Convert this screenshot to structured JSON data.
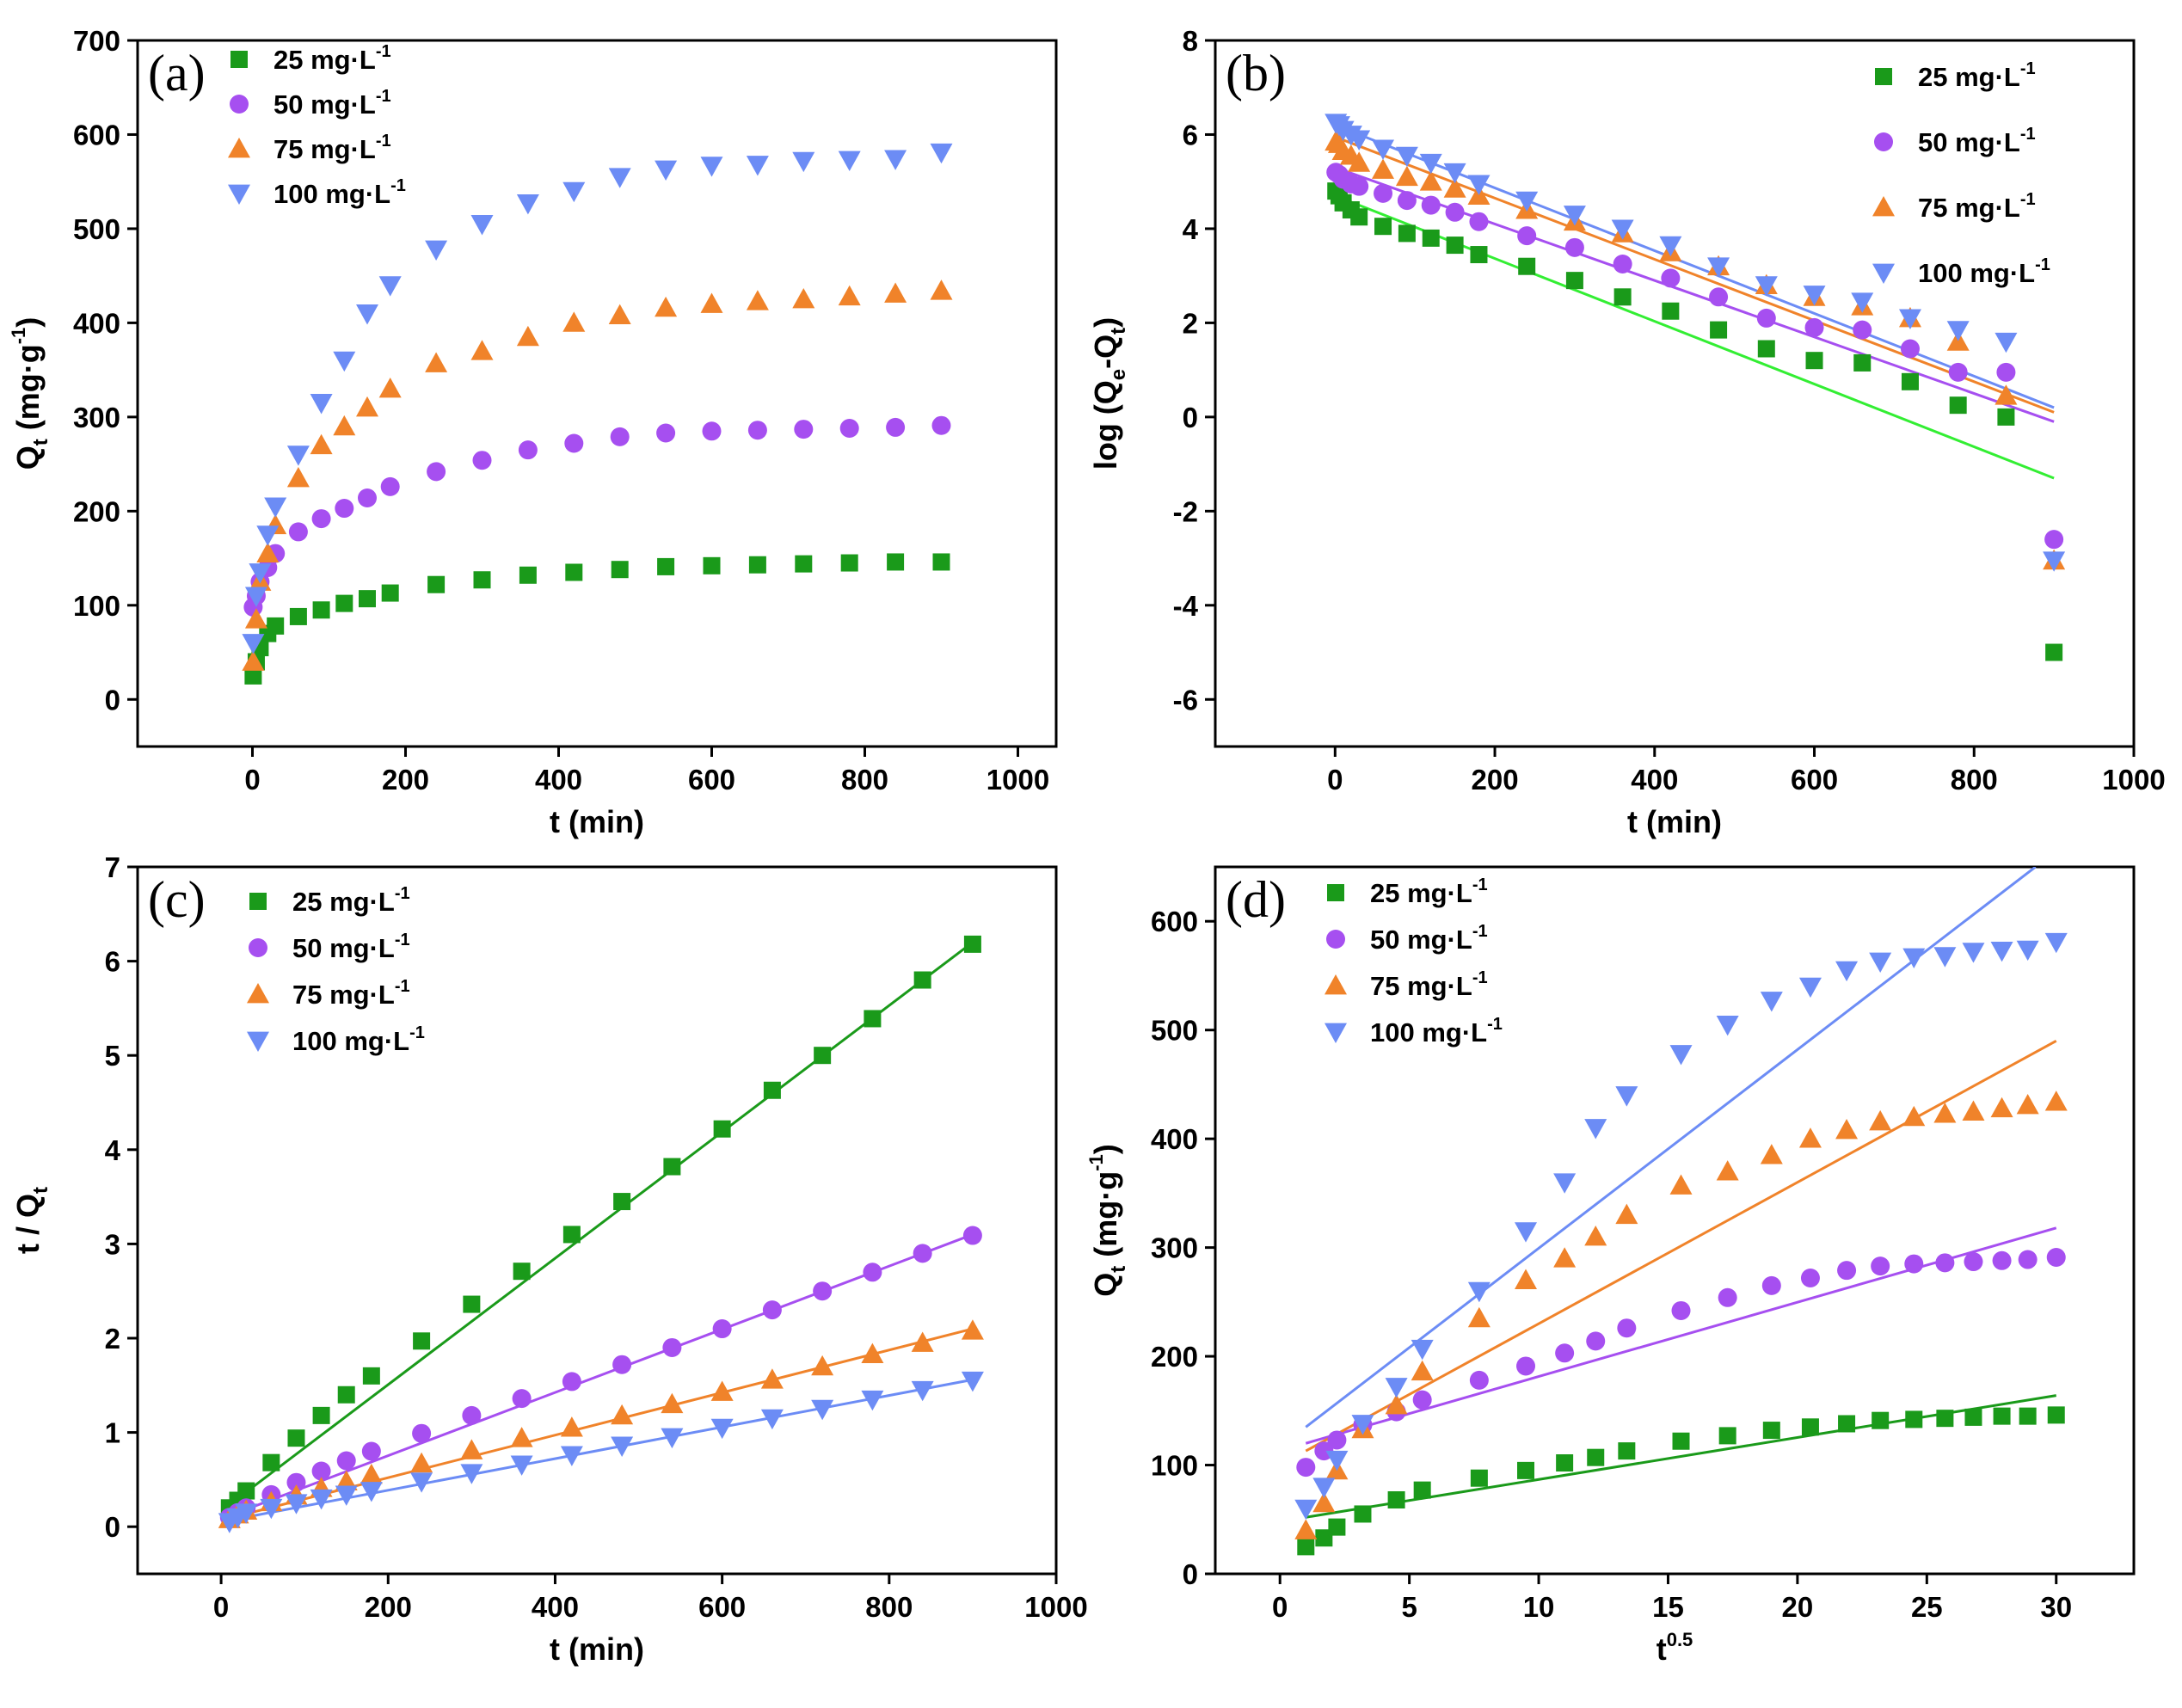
{
  "colors": {
    "c25": "#1a9a1a",
    "c50": "#a64ff0",
    "c75": "#f0832a",
    "c100": "#6c8cf5",
    "fitLightGreen": "#33ee33"
  },
  "legend_unit": "mg·L",
  "legend_exp": "-1",
  "chart_data": [
    {
      "id": "a",
      "type": "scatter",
      "panel_label": "(a)",
      "xlabel": "t (min)",
      "ylabel_main": "Q",
      "ylabel_sub": "t",
      "ylabel_units": " (mg·g",
      "ylabel_exp": "-1",
      "ylabel_close": ")",
      "xlim": [
        -150,
        1050
      ],
      "ylim": [
        -50,
        700
      ],
      "xticks": [
        0,
        200,
        400,
        600,
        800,
        1000
      ],
      "yticks": [
        0,
        100,
        200,
        300,
        400,
        500,
        600,
        700
      ],
      "legend_position": "top-left",
      "series": [
        {
          "name": "25",
          "marker": "square",
          "colorKey": "c25",
          "x": [
            1,
            5,
            10,
            20,
            30,
            60,
            90,
            120,
            150,
            180,
            240,
            300,
            360,
            420,
            480,
            540,
            600,
            660,
            720,
            780,
            840,
            900
          ],
          "y": [
            25,
            40,
            55,
            70,
            78,
            88,
            95,
            102,
            107,
            113,
            122,
            127,
            132,
            135,
            138,
            141,
            142,
            143,
            144,
            145,
            146,
            146
          ]
        },
        {
          "name": "50",
          "marker": "circle",
          "colorKey": "c50",
          "x": [
            1,
            5,
            10,
            20,
            30,
            60,
            90,
            120,
            150,
            180,
            240,
            300,
            360,
            420,
            480,
            540,
            600,
            660,
            720,
            780,
            840,
            900
          ],
          "y": [
            98,
            110,
            125,
            140,
            155,
            178,
            192,
            203,
            214,
            226,
            242,
            254,
            265,
            272,
            279,
            283,
            285,
            286,
            287,
            288,
            289,
            291
          ]
        },
        {
          "name": "75",
          "marker": "triangle-up",
          "colorKey": "c75",
          "x": [
            1,
            5,
            10,
            20,
            30,
            60,
            90,
            120,
            150,
            180,
            240,
            300,
            360,
            420,
            480,
            540,
            600,
            660,
            720,
            780,
            840,
            900
          ],
          "y": [
            40,
            85,
            125,
            155,
            185,
            235,
            270,
            290,
            310,
            330,
            357,
            370,
            385,
            400,
            408,
            416,
            420,
            423,
            425,
            428,
            431,
            434
          ]
        },
        {
          "name": "100",
          "marker": "triangle-down",
          "colorKey": "c100",
          "x": [
            1,
            5,
            10,
            20,
            30,
            60,
            90,
            120,
            150,
            180,
            240,
            300,
            360,
            420,
            480,
            540,
            600,
            660,
            720,
            780,
            840,
            900
          ],
          "y": [
            60,
            110,
            135,
            175,
            205,
            260,
            315,
            360,
            410,
            440,
            478,
            505,
            527,
            540,
            555,
            563,
            567,
            568,
            572,
            573,
            574,
            581
          ]
        }
      ]
    },
    {
      "id": "b",
      "type": "scatter",
      "panel_label": "(b)",
      "xlabel": "t (min)",
      "ylabel_text": "log (Q",
      "ylabel_sub1": "e",
      "ylabel_mid": "-Q",
      "ylabel_sub2": "t",
      "ylabel_close": ")",
      "xlim": [
        -150,
        1000
      ],
      "ylim": [
        -7,
        8
      ],
      "xticks": [
        0,
        200,
        400,
        600,
        800,
        1000
      ],
      "yticks": [
        -6,
        -4,
        -2,
        0,
        2,
        4,
        6,
        8
      ],
      "legend_position": "top-right",
      "series": [
        {
          "name": "25",
          "marker": "square",
          "colorKey": "c25",
          "x": [
            1,
            5,
            10,
            20,
            30,
            60,
            90,
            120,
            150,
            180,
            240,
            300,
            360,
            420,
            480,
            540,
            600,
            660,
            720,
            780,
            840,
            900
          ],
          "y": [
            4.8,
            4.7,
            4.55,
            4.4,
            4.25,
            4.05,
            3.9,
            3.8,
            3.65,
            3.45,
            3.2,
            2.9,
            2.55,
            2.25,
            1.85,
            1.45,
            1.2,
            1.15,
            0.75,
            0.25,
            0.0,
            -5.0
          ],
          "fit": {
            "x": [
              0,
              900
            ],
            "y": [
              4.7,
              -1.3
            ],
            "colorKey": "fitLightGreen"
          }
        },
        {
          "name": "50",
          "marker": "circle",
          "colorKey": "c50",
          "x": [
            1,
            5,
            10,
            20,
            30,
            60,
            90,
            120,
            150,
            180,
            240,
            300,
            360,
            420,
            480,
            540,
            600,
            660,
            720,
            780,
            840,
            900
          ],
          "y": [
            5.2,
            5.15,
            5.05,
            4.95,
            4.9,
            4.75,
            4.6,
            4.5,
            4.35,
            4.15,
            3.85,
            3.6,
            3.25,
            2.95,
            2.55,
            2.1,
            1.9,
            1.85,
            1.45,
            0.95,
            0.95,
            -2.6
          ],
          "fit": {
            "x": [
              0,
              900
            ],
            "y": [
              5.3,
              -0.1
            ],
            "colorKey": "c50"
          }
        },
        {
          "name": "75",
          "marker": "triangle-up",
          "colorKey": "c75",
          "x": [
            1,
            5,
            10,
            20,
            30,
            60,
            90,
            120,
            150,
            180,
            240,
            300,
            360,
            420,
            480,
            540,
            600,
            660,
            720,
            780,
            840,
            900
          ],
          "y": [
            5.85,
            5.8,
            5.65,
            5.55,
            5.4,
            5.25,
            5.1,
            5.0,
            4.85,
            4.7,
            4.4,
            4.15,
            3.9,
            3.5,
            3.2,
            2.8,
            2.55,
            2.35,
            2.1,
            1.6,
            0.45,
            -3.05
          ],
          "fit": {
            "x": [
              0,
              900
            ],
            "y": [
              5.95,
              0.1
            ],
            "colorKey": "c75"
          }
        },
        {
          "name": "100",
          "marker": "triangle-down",
          "colorKey": "c100",
          "x": [
            1,
            5,
            10,
            20,
            30,
            60,
            90,
            120,
            150,
            180,
            240,
            300,
            360,
            420,
            480,
            540,
            600,
            660,
            720,
            780,
            840,
            900
          ],
          "y": [
            6.25,
            6.2,
            6.1,
            6.0,
            5.9,
            5.7,
            5.55,
            5.4,
            5.2,
            4.95,
            4.6,
            4.3,
            4.0,
            3.65,
            3.2,
            2.8,
            2.6,
            2.45,
            2.1,
            1.85,
            1.6,
            -3.05
          ],
          "fit": {
            "x": [
              0,
              900
            ],
            "y": [
              6.2,
              0.2
            ],
            "colorKey": "c100"
          }
        }
      ]
    },
    {
      "id": "c",
      "type": "scatter",
      "panel_label": "(c)",
      "xlabel": "t (min)",
      "ylabel_main": "t / Q",
      "ylabel_sub": "t",
      "xlim": [
        -100,
        1000
      ],
      "ylim": [
        -0.5,
        7
      ],
      "xticks": [
        0,
        200,
        400,
        600,
        800,
        1000
      ],
      "yticks": [
        0,
        1,
        2,
        3,
        4,
        5,
        6,
        7
      ],
      "legend_position": "top-left",
      "series": [
        {
          "name": "25",
          "marker": "square",
          "colorKey": "c25",
          "x": [
            10,
            20,
            30,
            60,
            90,
            120,
            150,
            180,
            240,
            300,
            360,
            420,
            480,
            540,
            600,
            660,
            720,
            780,
            840,
            900
          ],
          "y": [
            0.2,
            0.28,
            0.38,
            0.68,
            0.94,
            1.18,
            1.4,
            1.6,
            1.97,
            2.36,
            2.71,
            3.1,
            3.45,
            3.82,
            4.22,
            4.63,
            5.0,
            5.39,
            5.8,
            6.18
          ],
          "fit": {
            "x": [
              5,
              900
            ],
            "y": [
              0.2,
              6.2
            ],
            "colorKey": "c25"
          }
        },
        {
          "name": "50",
          "marker": "circle",
          "colorKey": "c50",
          "x": [
            10,
            20,
            30,
            60,
            90,
            120,
            150,
            180,
            240,
            300,
            360,
            420,
            480,
            540,
            600,
            660,
            720,
            780,
            840,
            900
          ],
          "y": [
            0.1,
            0.15,
            0.2,
            0.34,
            0.47,
            0.59,
            0.7,
            0.8,
            0.99,
            1.18,
            1.36,
            1.54,
            1.72,
            1.9,
            2.1,
            2.3,
            2.5,
            2.7,
            2.9,
            3.09
          ],
          "fit": {
            "x": [
              5,
              900
            ],
            "y": [
              0.1,
              3.1
            ],
            "colorKey": "c50"
          }
        },
        {
          "name": "75",
          "marker": "triangle-up",
          "colorKey": "c75",
          "x": [
            10,
            20,
            30,
            60,
            90,
            120,
            150,
            180,
            240,
            300,
            360,
            420,
            480,
            540,
            600,
            660,
            720,
            780,
            840,
            900
          ],
          "y": [
            0.08,
            0.13,
            0.17,
            0.26,
            0.33,
            0.41,
            0.48,
            0.55,
            0.67,
            0.81,
            0.94,
            1.05,
            1.18,
            1.3,
            1.43,
            1.56,
            1.7,
            1.83,
            1.95,
            2.08
          ],
          "fit": {
            "x": [
              5,
              900
            ],
            "y": [
              0.08,
              2.1
            ],
            "colorKey": "c75"
          }
        },
        {
          "name": "100",
          "marker": "triangle-down",
          "colorKey": "c100",
          "x": [
            10,
            20,
            30,
            60,
            90,
            120,
            150,
            180,
            240,
            300,
            360,
            420,
            480,
            540,
            600,
            660,
            720,
            780,
            840,
            900
          ],
          "y": [
            0.05,
            0.1,
            0.15,
            0.2,
            0.25,
            0.3,
            0.34,
            0.38,
            0.48,
            0.57,
            0.66,
            0.76,
            0.86,
            0.95,
            1.05,
            1.15,
            1.25,
            1.35,
            1.45,
            1.55
          ],
          "fit": {
            "x": [
              5,
              900
            ],
            "y": [
              0.06,
              1.56
            ],
            "colorKey": "c100"
          }
        }
      ]
    },
    {
      "id": "d",
      "type": "scatter",
      "panel_label": "(d)",
      "xlabel_main": "t",
      "xlabel_exp": "0.5",
      "ylabel_main": "Q",
      "ylabel_sub": "t",
      "ylabel_units": " (mg·g",
      "ylabel_exp": "-1",
      "ylabel_close": ")",
      "xlim": [
        -2.5,
        33
      ],
      "ylim": [
        0,
        650
      ],
      "xticks": [
        0,
        5,
        10,
        15,
        20,
        25,
        30
      ],
      "yticks": [
        0,
        100,
        200,
        300,
        400,
        500,
        600
      ],
      "legend_position": "top-left",
      "series": [
        {
          "name": "25",
          "marker": "square",
          "colorKey": "c25",
          "x": [
            1,
            1.7,
            2.2,
            3.2,
            4.5,
            5.5,
            7.7,
            9.5,
            11,
            12.2,
            13.4,
            15.5,
            17.3,
            19,
            20.5,
            21.9,
            23.2,
            24.5,
            25.7,
            26.8,
            27.9,
            28.9,
            30
          ],
          "y": [
            25,
            33,
            43,
            55,
            68,
            77,
            88,
            95,
            102,
            107,
            113,
            122,
            127,
            132,
            135,
            138,
            141,
            142,
            143,
            144,
            145,
            145,
            146
          ],
          "fit": {
            "x": [
              1,
              30
            ],
            "y": [
              52,
              164
            ],
            "colorKey": "c25"
          }
        },
        {
          "name": "50",
          "marker": "circle",
          "colorKey": "c50",
          "x": [
            1,
            1.7,
            2.2,
            3.2,
            4.5,
            5.5,
            7.7,
            9.5,
            11,
            12.2,
            13.4,
            15.5,
            17.3,
            19,
            20.5,
            21.9,
            23.2,
            24.5,
            25.7,
            26.8,
            27.9,
            28.9,
            30
          ],
          "y": [
            98,
            113,
            123,
            137,
            149,
            160,
            178,
            191,
            203,
            214,
            226,
            242,
            254,
            265,
            272,
            279,
            283,
            285,
            286,
            287,
            288,
            289,
            291
          ],
          "fit": {
            "x": [
              1,
              30
            ],
            "y": [
              120,
              318
            ],
            "colorKey": "c50"
          }
        },
        {
          "name": "75",
          "marker": "triangle-up",
          "colorKey": "c75",
          "x": [
            1,
            1.7,
            2.2,
            3.2,
            4.5,
            5.5,
            7.7,
            9.5,
            11,
            12.2,
            13.4,
            15.5,
            17.3,
            19,
            20.5,
            21.9,
            23.2,
            24.5,
            25.7,
            26.8,
            27.9,
            28.9,
            30
          ],
          "y": [
            40,
            65,
            95,
            133,
            155,
            186,
            235,
            270,
            290,
            310,
            330,
            357,
            370,
            385,
            400,
            408,
            416,
            420,
            423,
            425,
            428,
            431,
            434
          ],
          "fit": {
            "x": [
              1,
              30
            ],
            "y": [
              113,
              490
            ],
            "colorKey": "c75"
          }
        },
        {
          "name": "100",
          "marker": "triangle-down",
          "colorKey": "c100",
          "x": [
            1,
            1.7,
            2.2,
            3.2,
            4.5,
            5.5,
            7.7,
            9.5,
            11,
            12.2,
            13.4,
            15.5,
            17.3,
            19,
            20.5,
            21.9,
            23.2,
            24.5,
            25.7,
            26.8,
            27.9,
            28.9,
            30
          ],
          "y": [
            60,
            80,
            105,
            138,
            172,
            207,
            260,
            315,
            360,
            410,
            440,
            478,
            505,
            527,
            540,
            555,
            563,
            567,
            568,
            572,
            573,
            574,
            581
          ],
          "fit": {
            "x": [
              1,
              29.2
            ],
            "y": [
              135,
              650
            ],
            "colorKey": "c100"
          }
        }
      ]
    }
  ]
}
